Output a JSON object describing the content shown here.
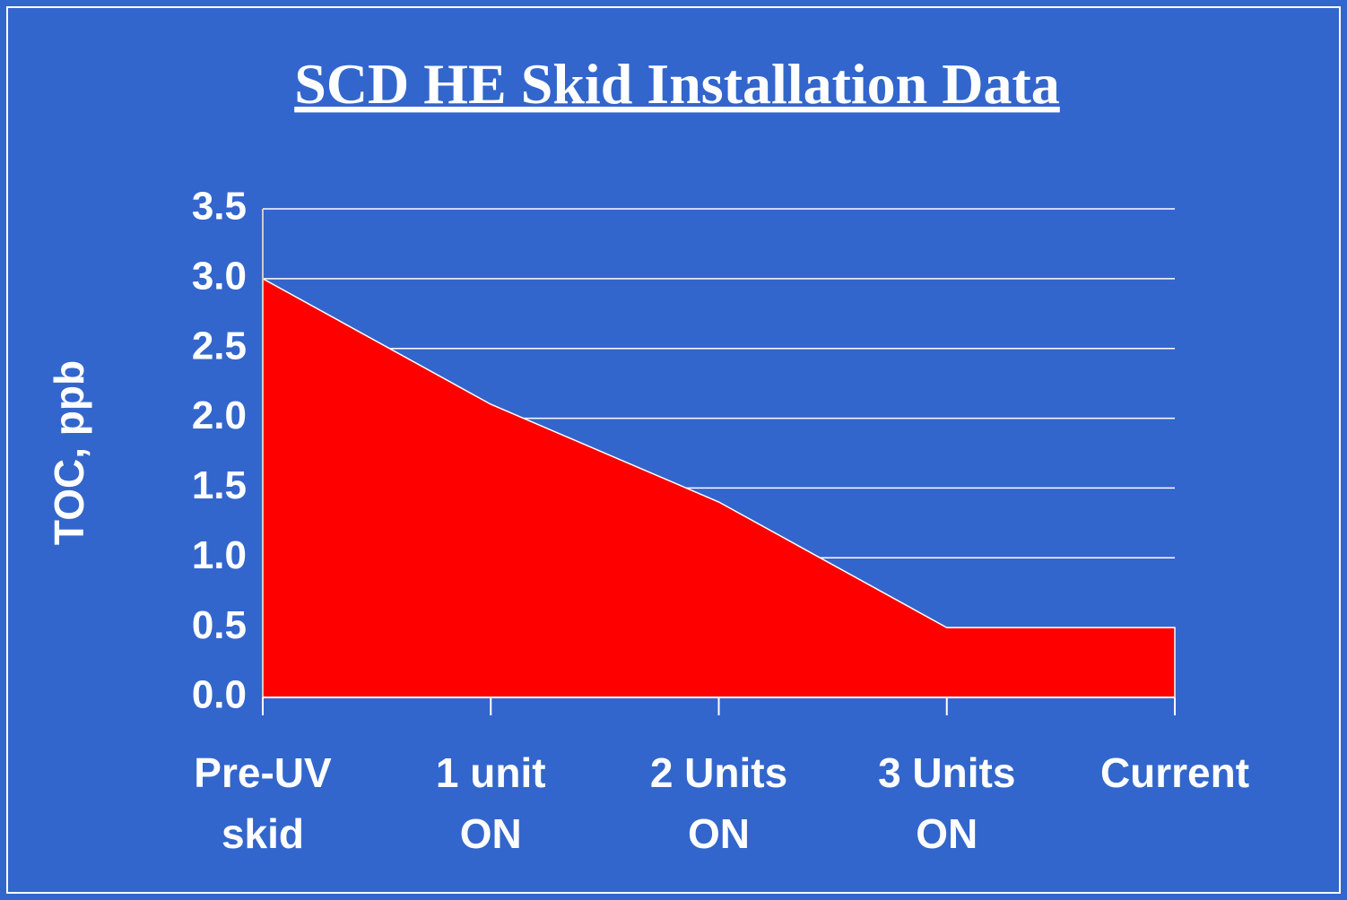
{
  "chart_data": {
    "type": "area",
    "title": "SCD HE Skid Installation Data",
    "y_label": "TOC, ppb",
    "categories": [
      "Pre-UV\nskid",
      "1 unit\nON",
      "2 Units\nON",
      "3 Units\nON",
      "Current"
    ],
    "values": [
      3.0,
      2.1,
      1.4,
      0.5,
      0.5
    ],
    "color": "#ff0000",
    "ylim": [
      0,
      3.5
    ],
    "yticks": [
      {
        "value": 0,
        "label": "0.0"
      },
      0.5,
      {
        "value": 1,
        "label": "1.0"
      },
      1.5,
      {
        "value": 2,
        "label": "2.0"
      },
      2.5,
      {
        "value": 3,
        "label": "3.0"
      },
      3.5
    ],
    "grid": true
  }
}
